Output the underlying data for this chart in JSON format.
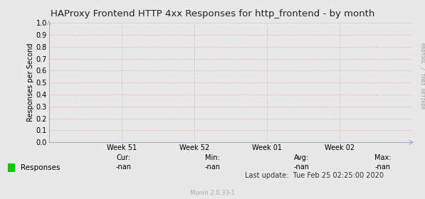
{
  "title": "HAProxy Frontend HTTP 4xx Responses for http_frontend - by month",
  "ylabel": "Responses per Second",
  "ylim": [
    0.0,
    1.0
  ],
  "yticks": [
    0.0,
    0.1,
    0.2,
    0.3,
    0.4,
    0.5,
    0.6,
    0.7,
    0.8,
    0.9,
    1.0
  ],
  "xtick_labels": [
    "Week 51",
    "Week 52",
    "Week 01",
    "Week 02"
  ],
  "xtick_positions": [
    0.2,
    0.4,
    0.6,
    0.8
  ],
  "vline_positions": [
    0.0,
    0.2,
    0.4,
    0.6,
    0.8,
    1.0
  ],
  "background_color": "#e8e8e8",
  "plot_bg_color": "#e8e8e8",
  "grid_color": "#ff9999",
  "spine_color": "#aaaacc",
  "legend_label": "Responses",
  "legend_color": "#00cc00",
  "cur_val": "-nan",
  "min_val": "-nan",
  "avg_val": "-nan",
  "max_val": "-nan",
  "last_update": "Last update:  Tue Feb 25 02:25:00 2020",
  "munin_label": "Munin 2.0.33-1",
  "side_label": "RRDTOOL / TOBI OETIKER",
  "title_fontsize": 9.5,
  "axis_label_fontsize": 7,
  "tick_fontsize": 7,
  "legend_fontsize": 7.5,
  "stats_fontsize": 7,
  "munin_fontsize": 6,
  "side_fontsize": 5
}
